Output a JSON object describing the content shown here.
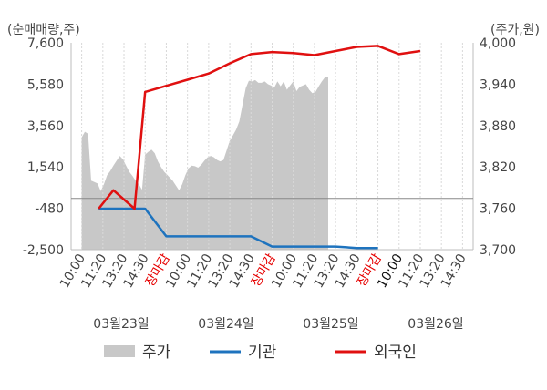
{
  "chart_data": {
    "type": "line",
    "left_axis_unit": "(순매매량,주)",
    "right_axis_unit": "(주가,원)",
    "left_ticks": [
      "7,600",
      "5,580",
      "3,560",
      "1,540",
      "-480",
      "-2,500"
    ],
    "right_ticks": [
      "4,000",
      "3,940",
      "3,880",
      "3,820",
      "3,760",
      "3,700"
    ],
    "left_range": [
      -2500,
      7600
    ],
    "right_range": [
      3700,
      4000
    ],
    "x_tick_labels": [
      "10:00",
      "11:20",
      "13:20",
      "14:30",
      "장마감",
      "10:00",
      "11:20",
      "13:20",
      "14:30",
      "장마감",
      "10:00",
      "11:20",
      "13:20",
      "14:30",
      "장마감",
      "10:00",
      "11:20",
      "13:20",
      "14:30"
    ],
    "x_tick_colors": [
      "#444444",
      "#444444",
      "#444444",
      "#444444",
      "#e60000",
      "#444444",
      "#444444",
      "#444444",
      "#444444",
      "#e60000",
      "#444444",
      "#444444",
      "#444444",
      "#444444",
      "#e60000",
      "#111111",
      "#444444",
      "#444444",
      "#444444"
    ],
    "dates": [
      "03월23일",
      "03월24일",
      "03월25일",
      "03월26일"
    ],
    "legend": [
      {
        "label": "주가",
        "color": "#c8c8c8",
        "kind": "box"
      },
      {
        "label": "기관",
        "color": "#1e73be",
        "kind": "line"
      },
      {
        "label": "외국인",
        "color": "#e01010",
        "kind": "line"
      }
    ],
    "series": [
      {
        "name": "주가",
        "axis": "right",
        "color": "#c8c8c8",
        "points": [
          [
            0.0,
            3863
          ],
          [
            0.15,
            3871
          ],
          [
            0.3,
            3868
          ],
          [
            0.45,
            3800
          ],
          [
            0.6,
            3798
          ],
          [
            0.75,
            3796
          ],
          [
            0.9,
            3785
          ],
          [
            1.05,
            3795
          ],
          [
            1.2,
            3808
          ],
          [
            1.35,
            3814
          ],
          [
            1.5,
            3822
          ],
          [
            1.65,
            3829
          ],
          [
            1.8,
            3836
          ],
          [
            1.95,
            3831
          ],
          [
            2.1,
            3822
          ],
          [
            2.25,
            3813
          ],
          [
            2.4,
            3807
          ],
          [
            2.55,
            3800
          ],
          [
            2.7,
            3795
          ],
          [
            2.85,
            3787
          ],
          [
            3.0,
            3838
          ],
          [
            3.15,
            3842
          ],
          [
            3.3,
            3845
          ],
          [
            3.45,
            3840
          ],
          [
            3.6,
            3828
          ],
          [
            3.75,
            3820
          ],
          [
            3.9,
            3813
          ],
          [
            4.0,
            3810
          ],
          [
            4.3,
            3800
          ],
          [
            4.6,
            3786
          ],
          [
            4.75,
            3795
          ],
          [
            4.9,
            3808
          ],
          [
            5.05,
            3818
          ],
          [
            5.2,
            3822
          ],
          [
            5.35,
            3821
          ],
          [
            5.5,
            3819
          ],
          [
            5.65,
            3823
          ],
          [
            5.8,
            3829
          ],
          [
            5.95,
            3834
          ],
          [
            6.1,
            3836
          ],
          [
            6.25,
            3834
          ],
          [
            6.4,
            3830
          ],
          [
            6.55,
            3828
          ],
          [
            6.7,
            3830
          ],
          [
            6.85,
            3844
          ],
          [
            7.0,
            3858
          ],
          [
            7.15,
            3866
          ],
          [
            7.3,
            3874
          ],
          [
            7.45,
            3886
          ],
          [
            7.6,
            3910
          ],
          [
            7.75,
            3934
          ],
          [
            7.9,
            3945
          ],
          [
            8.05,
            3944
          ],
          [
            8.2,
            3946
          ],
          [
            8.35,
            3942
          ],
          [
            8.5,
            3942
          ],
          [
            8.65,
            3944
          ],
          [
            8.8,
            3940
          ],
          [
            8.95,
            3938
          ],
          [
            9.1,
            3935
          ],
          [
            9.25,
            3944
          ],
          [
            9.4,
            3937
          ],
          [
            9.55,
            3944
          ],
          [
            9.7,
            3932
          ],
          [
            9.85,
            3938
          ],
          [
            10.0,
            3944
          ],
          [
            10.15,
            3930
          ],
          [
            10.3,
            3936
          ],
          [
            10.45,
            3938
          ],
          [
            10.6,
            3940
          ],
          [
            10.75,
            3932
          ],
          [
            10.9,
            3927
          ],
          [
            11.05,
            3929
          ],
          [
            11.2,
            3937
          ],
          [
            11.35,
            3944
          ],
          [
            11.5,
            3950
          ],
          [
            11.65,
            3950
          ]
        ]
      },
      {
        "name": "기관",
        "axis": "left",
        "color": "#1e73be",
        "points": [
          [
            0.8,
            -500
          ],
          [
            1.5,
            -500
          ],
          [
            2.5,
            -500
          ],
          [
            3.0,
            -500
          ],
          [
            4.0,
            -1850
          ],
          [
            5.0,
            -1850
          ],
          [
            6.0,
            -1850
          ],
          [
            7.0,
            -1850
          ],
          [
            8.0,
            -1850
          ],
          [
            9.0,
            -2350
          ],
          [
            10.0,
            -2350
          ],
          [
            11.0,
            -2350
          ],
          [
            12.0,
            -2350
          ],
          [
            13.0,
            -2420
          ],
          [
            14.0,
            -2420
          ]
        ]
      },
      {
        "name": "외국인",
        "axis": "left",
        "color": "#e01010",
        "points": [
          [
            0.8,
            -500
          ],
          [
            1.5,
            400
          ],
          [
            2.5,
            -500
          ],
          [
            3.0,
            5200
          ],
          [
            4.0,
            5500
          ],
          [
            5.0,
            5800
          ],
          [
            6.0,
            6100
          ],
          [
            7.0,
            6600
          ],
          [
            8.0,
            7050
          ],
          [
            9.0,
            7150
          ],
          [
            10.0,
            7100
          ],
          [
            11.0,
            7000
          ],
          [
            12.0,
            7200
          ],
          [
            13.0,
            7400
          ],
          [
            14.0,
            7450
          ],
          [
            15.0,
            7050
          ],
          [
            16.0,
            7200
          ]
        ]
      }
    ]
  }
}
